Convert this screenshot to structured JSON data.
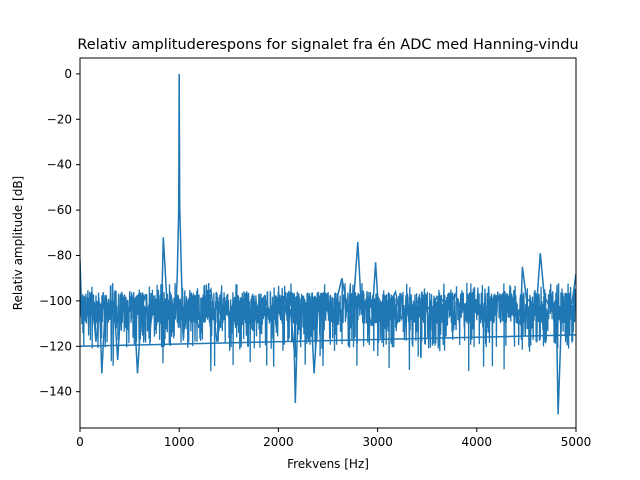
{
  "chart_data": {
    "type": "line",
    "title": "Relativ amplituderespons for signalet fra én ADC med Hanning-vindu",
    "xlabel": "Frekvens [Hz]",
    "ylabel": "Relativ amplitude [dB]",
    "xlim": [
      0,
      5000
    ],
    "ylim": [
      -156,
      7
    ],
    "xticks": [
      0,
      1000,
      2000,
      3000,
      4000,
      5000
    ],
    "yticks": [
      0,
      -20,
      -40,
      -60,
      -80,
      -100,
      -120,
      -140
    ],
    "xtick_labels": [
      "0",
      "1000",
      "2000",
      "3000",
      "4000",
      "5000"
    ],
    "ytick_labels": [
      "0",
      "−20",
      "−40",
      "−60",
      "−80",
      "−100",
      "−120",
      "−140"
    ],
    "grid": false,
    "line_color": "#1f77b4",
    "noise_floor_db": -103,
    "wrap_line": {
      "x": [
        0,
        5000
      ],
      "y": [
        -120,
        -115
      ]
    },
    "series": [
      {
        "x": [
          0,
          20,
          40,
          60,
          80,
          120,
          160,
          200,
          220,
          260,
          300,
          340,
          380,
          420,
          460,
          500,
          540,
          580,
          620,
          660,
          700,
          740,
          780,
          820,
          840,
          880,
          920,
          960,
          980,
          995,
          1000,
          1005,
          1020,
          1040,
          1080,
          1120,
          1160,
          1200,
          1260,
          1320,
          1380,
          1440,
          1500,
          1560,
          1620,
          1680,
          1740,
          1800,
          1860,
          1920,
          1960,
          1980,
          2000,
          2040,
          2080,
          2120,
          2160,
          2170,
          2200,
          2260,
          2320,
          2360,
          2400,
          2460,
          2520,
          2580,
          2640,
          2700,
          2760,
          2800,
          2840,
          2880,
          2940,
          2980,
          3000,
          3060,
          3120,
          3180,
          3240,
          3300,
          3360,
          3420,
          3480,
          3540,
          3600,
          3660,
          3720,
          3780,
          3840,
          3900,
          3960,
          4020,
          4080,
          4140,
          4200,
          4260,
          4320,
          4380,
          4440,
          4460,
          4500,
          4560,
          4600,
          4640,
          4680,
          4740,
          4800,
          4820,
          4860,
          4920,
          4960,
          5000
        ],
        "y": [
          -82,
          -110,
          -99,
          -106,
          -101,
          -96,
          -118,
          -104,
          -132,
          -98,
          -107,
          -100,
          -126,
          -96,
          -112,
          -103,
          -99,
          -132,
          -104,
          -97,
          -115,
          -101,
          -106,
          -110,
          -72,
          -103,
          -98,
          -108,
          -90,
          -60,
          0,
          -58,
          -84,
          -116,
          -101,
          -97,
          -106,
          -112,
          -100,
          -95,
          -118,
          -102,
          -107,
          -99,
          -104,
          -96,
          -113,
          -101,
          -98,
          -108,
          -102,
          -112,
          -96,
          -110,
          -101,
          -104,
          -122,
          -145,
          -100,
          -106,
          -98,
          -132,
          -103,
          -97,
          -109,
          -101,
          -90,
          -104,
          -99,
          -74,
          -106,
          -100,
          -111,
          -83,
          -98,
          -103,
          -101,
          -96,
          -108,
          -102,
          -104,
          -99,
          -101,
          -105,
          -98,
          -100,
          -103,
          -97,
          -104,
          -101,
          -99,
          -102,
          -104,
          -100,
          -98,
          -103,
          -101,
          -105,
          -110,
          -85,
          -99,
          -101,
          -104,
          -79,
          -98,
          -103,
          -100,
          -150,
          -99,
          -104,
          -101,
          -88
        ]
      }
    ]
  }
}
